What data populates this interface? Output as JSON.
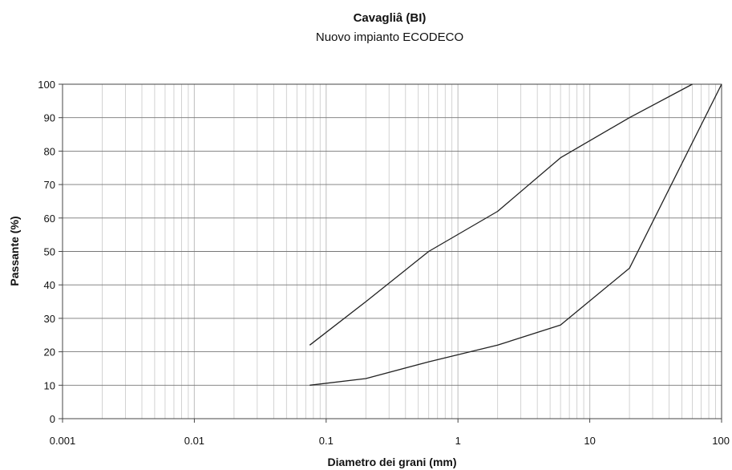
{
  "chart_data": {
    "type": "line",
    "title": "Cavagliâ (BI)",
    "subtitle": "Nuovo impianto ECODECO",
    "xlabel": "Diametro dei grani (mm)",
    "ylabel": "Passante (%)",
    "xscale": "log",
    "xlim": [
      0.001,
      100
    ],
    "ylim": [
      0,
      100
    ],
    "grid": true,
    "x_ticks": [
      "0.001",
      "0.01",
      "0.1",
      "1",
      "10",
      "100"
    ],
    "y_ticks": [
      "0",
      "10",
      "20",
      "30",
      "40",
      "50",
      "60",
      "70",
      "80",
      "90",
      "100"
    ],
    "series": [
      {
        "x": [
          0.075,
          0.2,
          0.6,
          2,
          6,
          20,
          60
        ],
        "y": [
          22,
          35,
          50,
          62,
          78,
          90,
          100
        ]
      },
      {
        "x": [
          0.075,
          0.2,
          0.6,
          2,
          6,
          20,
          100
        ],
        "y": [
          10,
          12,
          17,
          22,
          28,
          45,
          100
        ]
      }
    ],
    "colors": {
      "line": "#222222",
      "grid": "#c8c8c8",
      "frame": "#444444"
    }
  }
}
